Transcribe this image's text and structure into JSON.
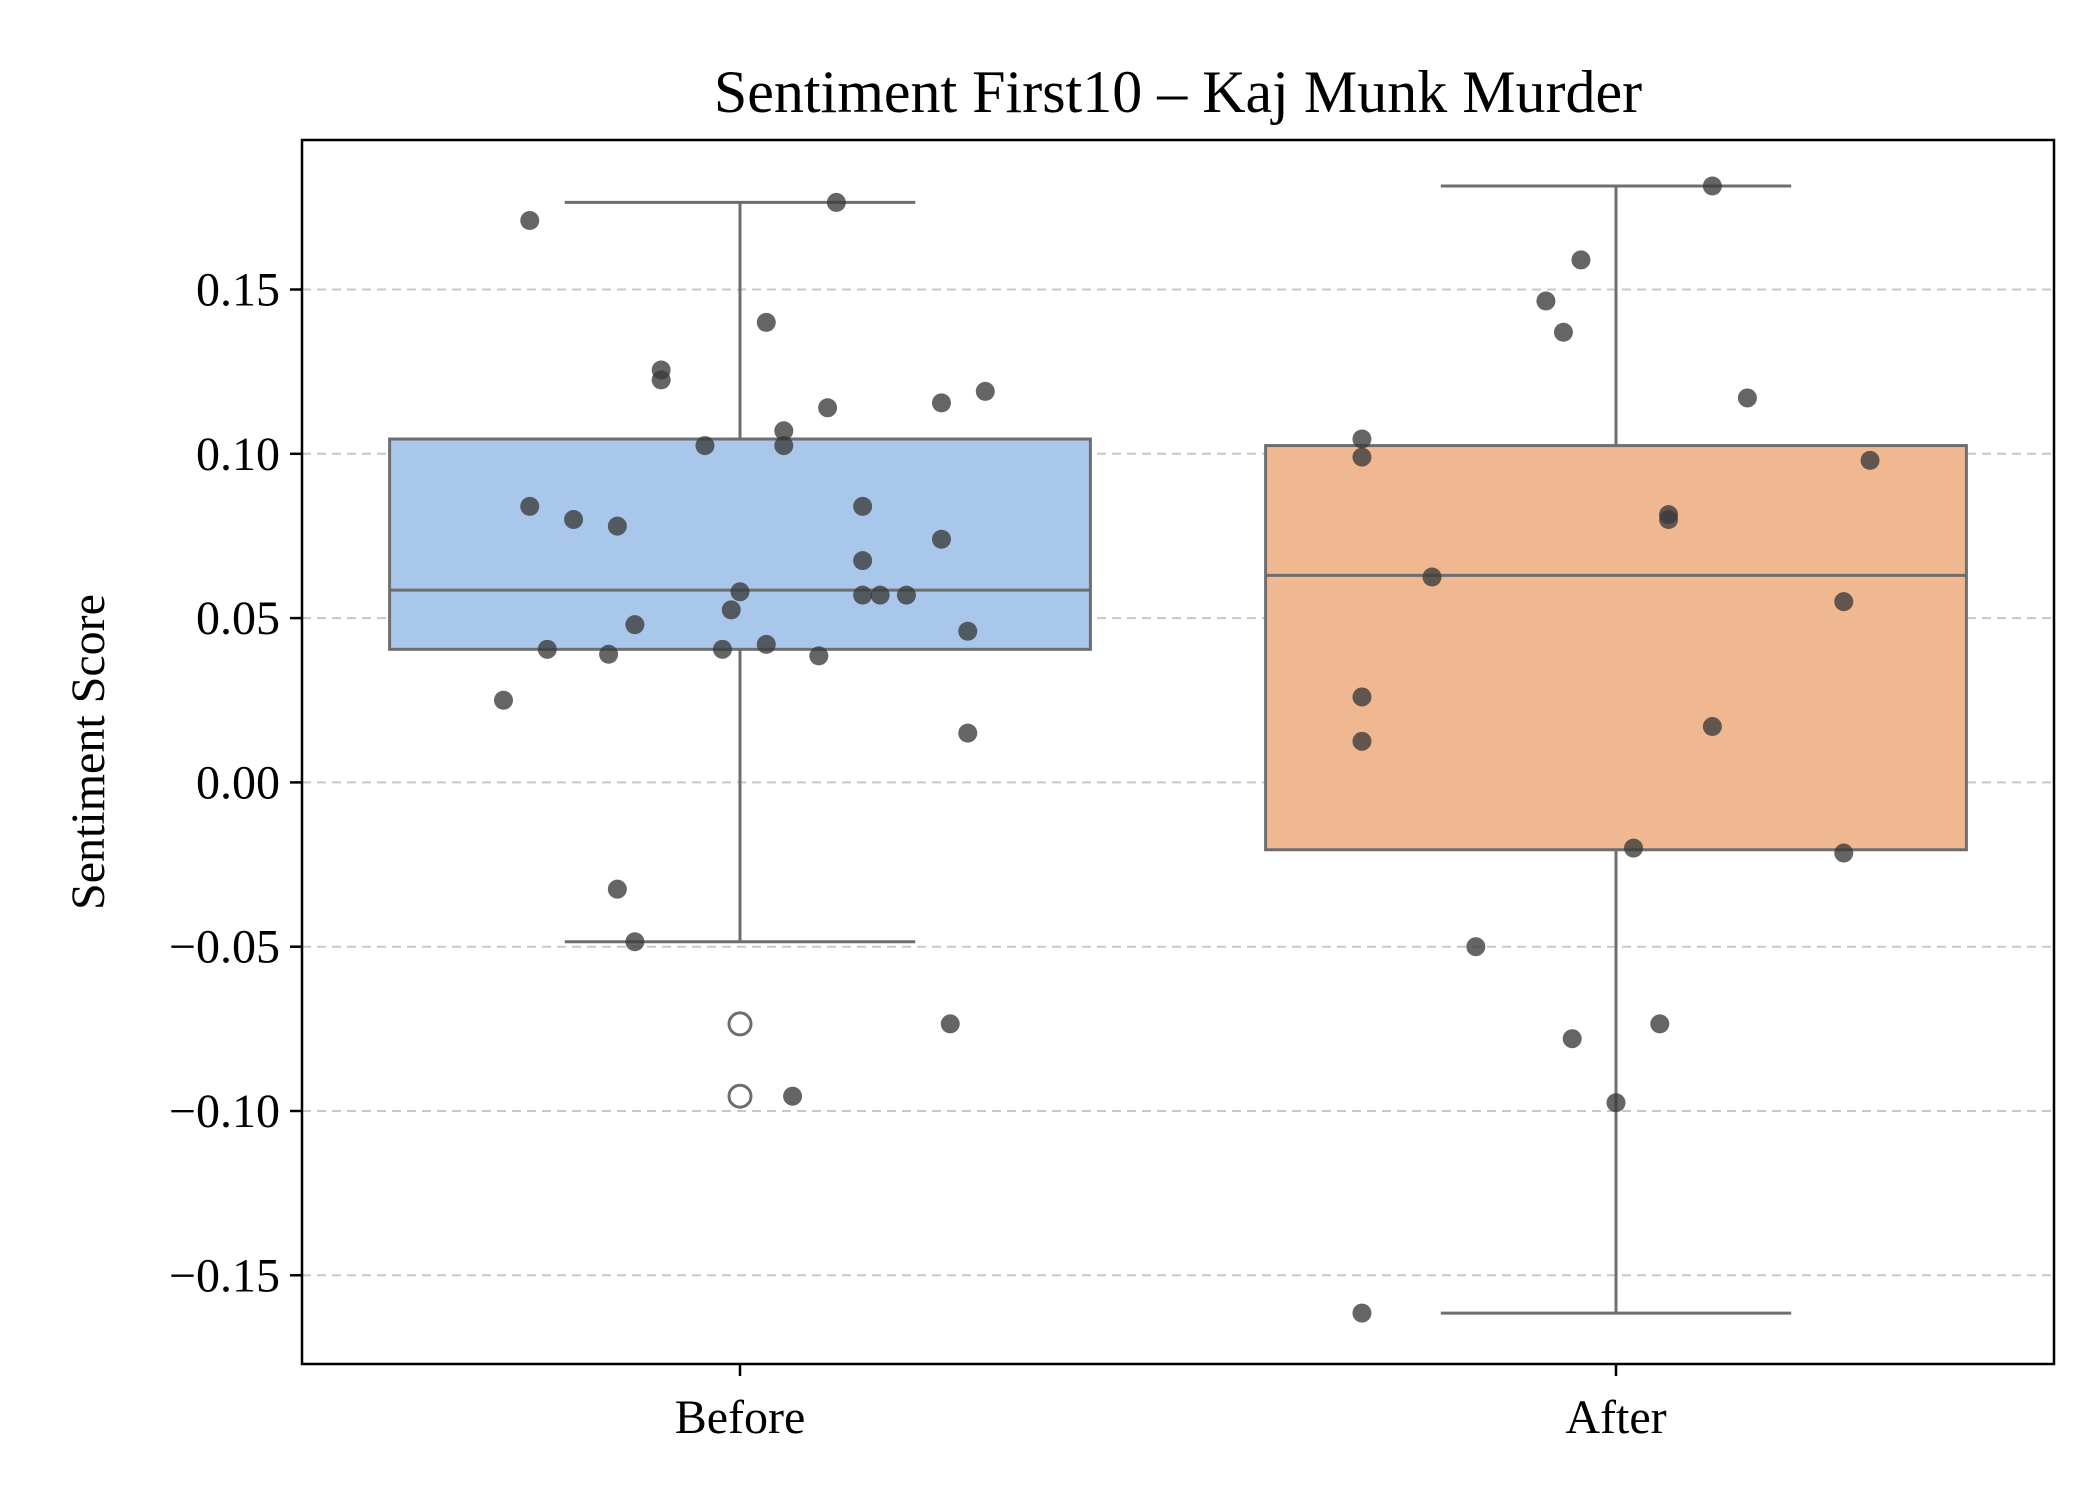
{
  "chart_data": {
    "type": "box",
    "title": "Sentiment First10 – Kaj Munk Murder",
    "xlabel": "",
    "ylabel": "Sentiment Score",
    "ylim": [
      -0.177,
      0.1955
    ],
    "yticks": [
      -0.15,
      -0.1,
      -0.05,
      0.0,
      0.05,
      0.1,
      0.15
    ],
    "ytick_labels": [
      "−0.15",
      "−0.10",
      "−0.05",
      "0.00",
      "0.05",
      "0.10",
      "0.15"
    ],
    "grid": "y-dashed",
    "categories": [
      "Before",
      "After"
    ],
    "colors": {
      "Before": "#a9c7ea",
      "After": "#f0b891",
      "box_edge": "#6e6e6e",
      "point": "#3a3a3a",
      "grid": "#c8c8c8"
    },
    "boxes": [
      {
        "name": "Before",
        "q1": 0.0405,
        "median": 0.0585,
        "q3": 0.1045,
        "whisker_low": -0.0485,
        "whisker_high": 0.1765,
        "fliers": [
          -0.0735,
          -0.0955
        ],
        "points": [
          [
            -0.24,
            0.171
          ],
          [
            0.11,
            0.1765
          ],
          [
            0.03,
            0.14
          ],
          [
            -0.09,
            0.1255
          ],
          [
            -0.09,
            0.1225
          ],
          [
            0.1,
            0.114
          ],
          [
            0.23,
            0.1155
          ],
          [
            0.28,
            0.119
          ],
          [
            0.05,
            0.107
          ],
          [
            -0.04,
            0.1025
          ],
          [
            0.05,
            0.1025
          ],
          [
            -0.24,
            0.084
          ],
          [
            -0.19,
            0.08
          ],
          [
            -0.14,
            0.078
          ],
          [
            0.14,
            0.084
          ],
          [
            0.14,
            0.0675
          ],
          [
            0.23,
            0.074
          ],
          [
            0.0,
            0.058
          ],
          [
            0.14,
            0.057
          ],
          [
            0.16,
            0.057
          ],
          [
            0.19,
            0.057
          ],
          [
            -0.01,
            0.0525
          ],
          [
            -0.12,
            0.048
          ],
          [
            0.26,
            0.046
          ],
          [
            -0.22,
            0.0405
          ],
          [
            -0.15,
            0.039
          ],
          [
            -0.02,
            0.0405
          ],
          [
            0.03,
            0.042
          ],
          [
            0.09,
            0.0385
          ],
          [
            -0.27,
            0.025
          ],
          [
            0.26,
            0.015
          ],
          [
            -0.14,
            -0.0325
          ],
          [
            -0.12,
            -0.0485
          ],
          [
            0.24,
            -0.0735
          ],
          [
            0.06,
            -0.0955
          ]
        ]
      },
      {
        "name": "After",
        "q1": -0.0205,
        "median": 0.063,
        "q3": 0.1025,
        "whisker_low": -0.1615,
        "whisker_high": 0.1815,
        "fliers": [],
        "points": [
          [
            0.11,
            0.1815
          ],
          [
            -0.04,
            0.159
          ],
          [
            -0.08,
            0.1465
          ],
          [
            -0.06,
            0.137
          ],
          [
            0.15,
            0.117
          ],
          [
            -0.29,
            0.1045
          ],
          [
            -0.29,
            0.099
          ],
          [
            0.29,
            0.098
          ],
          [
            0.06,
            0.0815
          ],
          [
            0.06,
            0.08
          ],
          [
            -0.21,
            0.0625
          ],
          [
            0.26,
            0.055
          ],
          [
            -0.29,
            0.026
          ],
          [
            -0.29,
            0.0125
          ],
          [
            0.11,
            0.017
          ],
          [
            0.02,
            -0.02
          ],
          [
            0.26,
            -0.0215
          ],
          [
            -0.16,
            -0.05
          ],
          [
            -0.05,
            -0.078
          ],
          [
            0.05,
            -0.0735
          ],
          [
            0.0,
            -0.0975
          ],
          [
            -0.29,
            -0.1615
          ]
        ]
      }
    ]
  }
}
